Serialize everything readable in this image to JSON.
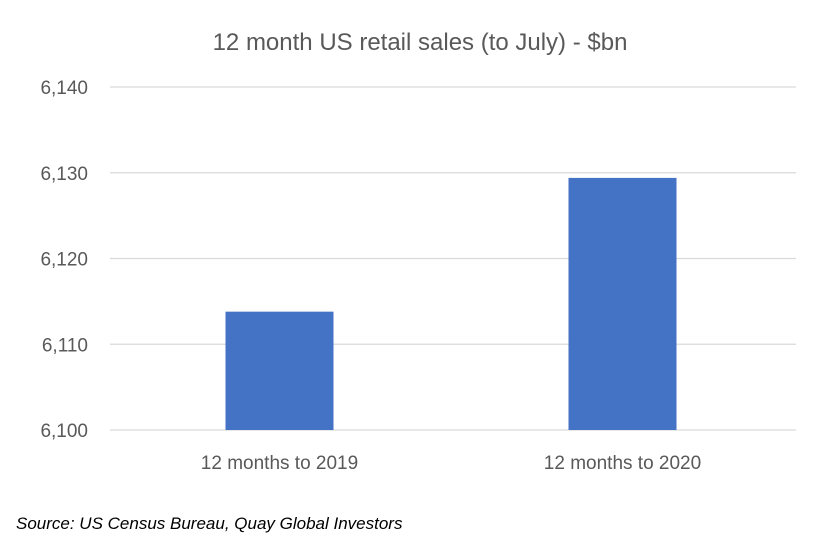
{
  "chart_data": {
    "type": "bar",
    "title": "12 month US retail sales (to July) - $bn",
    "categories": [
      "12 months to 2019",
      "12 months to 2020"
    ],
    "values": [
      6113.8,
      6129.4
    ],
    "ylim": [
      6100,
      6140
    ],
    "yticks": [
      6100,
      6110,
      6120,
      6130,
      6140
    ],
    "ytick_labels": [
      "6,100",
      "6,110",
      "6,120",
      "6,130",
      "6,140"
    ],
    "xlabel": "",
    "ylabel": "",
    "grid": true,
    "legend": "none",
    "bar_color": "#4472C4",
    "grid_color": "#D9D9D9",
    "text_color": "#595959"
  },
  "source": "Source: US Census Bureau, Quay Global Investors"
}
